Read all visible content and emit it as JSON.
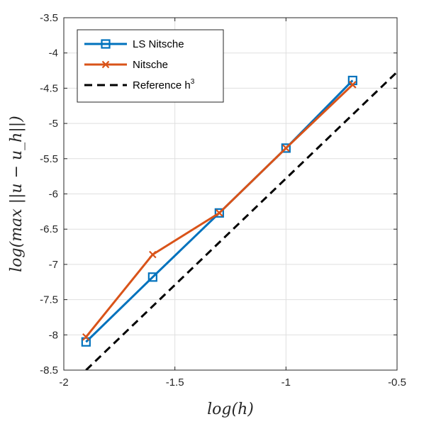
{
  "chart_data": {
    "type": "line",
    "xlabel": "log(h)",
    "ylabel": "log(max ||u − u_h||)",
    "xlim": [
      -2,
      -0.5
    ],
    "ylim": [
      -8.5,
      -3.5
    ],
    "xticks": [
      -2,
      -1.5,
      -1,
      -0.5
    ],
    "yticks": [
      -3.5,
      -4,
      -4.5,
      -5,
      -5.5,
      -6,
      -6.5,
      -7,
      -7.5,
      -8,
      -8.5
    ],
    "x_tick_labels": [
      "-2",
      "-1.5",
      "-1",
      "-0.5"
    ],
    "y_tick_labels": [
      "-3.5",
      "-4",
      "-4.5",
      "-5",
      "-5.5",
      "-6",
      "-6.5",
      "-7",
      "-7.5",
      "-8",
      "-8.5"
    ],
    "grid": true,
    "legend_position": "top-left",
    "series": [
      {
        "name": "LS Nitsche",
        "color": "#0072BD",
        "marker": "square",
        "x": [
          -1.9,
          -1.6,
          -1.3,
          -1.0,
          -0.7
        ],
        "y": [
          -8.1,
          -7.18,
          -6.27,
          -5.35,
          -4.39
        ]
      },
      {
        "name": "Nitsche",
        "color": "#D95319",
        "marker": "x",
        "x": [
          -1.9,
          -1.6,
          -1.3,
          -1.0,
          -0.7
        ],
        "y": [
          -8.03,
          -6.86,
          -6.27,
          -5.35,
          -4.45
        ]
      },
      {
        "name": "Reference h",
        "name_superscript": "3",
        "color": "#000000",
        "dash": "dashed",
        "x": [
          -1.9,
          -0.5
        ],
        "y": [
          -8.5,
          -4.27
        ]
      }
    ]
  }
}
